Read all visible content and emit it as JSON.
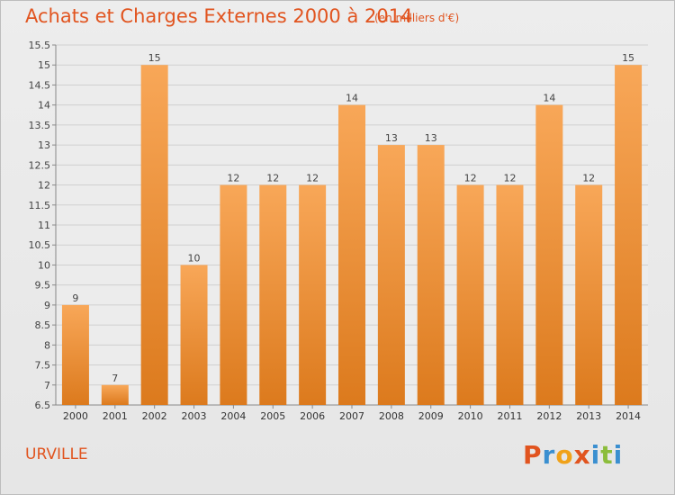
{
  "header": {
    "title": "Achats et Charges Externes 2000 à 2014",
    "unit": "(en milliers d'€)"
  },
  "footer": {
    "commune": "URVILLE",
    "brand": "Proxiti",
    "brand_letters": [
      {
        "ch": "P",
        "color": "#e1541f"
      },
      {
        "ch": "r",
        "color": "#3a8fd0"
      },
      {
        "ch": "o",
        "color": "#f0a21a"
      },
      {
        "ch": "x",
        "color": "#e1541f"
      },
      {
        "ch": "i",
        "color": "#3a8fd0"
      },
      {
        "ch": "t",
        "color": "#8cbd3c"
      },
      {
        "ch": "i",
        "color": "#3a8fd0"
      }
    ]
  },
  "colors": {
    "accent": "#e1541f",
    "bar_light": "#f8a758",
    "bar_dark": "#dc7a1d",
    "grid": "#d0d0d0"
  },
  "chart_data": {
    "type": "bar",
    "title": "Achats et Charges Externes 2000 à 2014",
    "subtitle": "(en milliers d'€)",
    "categories": [
      "2000",
      "2001",
      "2002",
      "2003",
      "2004",
      "2005",
      "2006",
      "2007",
      "2008",
      "2009",
      "2010",
      "2011",
      "2012",
      "2013",
      "2014"
    ],
    "values": [
      9,
      7,
      15,
      10,
      12,
      12,
      12,
      14,
      13,
      13,
      12,
      12,
      14,
      12,
      15
    ],
    "ylim": [
      6.5,
      15.5
    ],
    "yticks": [
      6.5,
      7,
      7.5,
      8,
      8.5,
      9,
      9.5,
      10,
      10.5,
      11,
      11.5,
      12,
      12.5,
      13,
      13.5,
      14,
      14.5,
      15,
      15.5
    ],
    "ytick_labels": [
      "6.5",
      "7",
      "7.5",
      "8",
      "8.5",
      "9",
      "9.5",
      "10",
      "10.5",
      "11",
      "11.5",
      "12",
      "12.5",
      "13",
      "13.5",
      "14",
      "14.5",
      "15",
      "15.5"
    ],
    "grid": true,
    "xlabel": "",
    "ylabel": ""
  }
}
